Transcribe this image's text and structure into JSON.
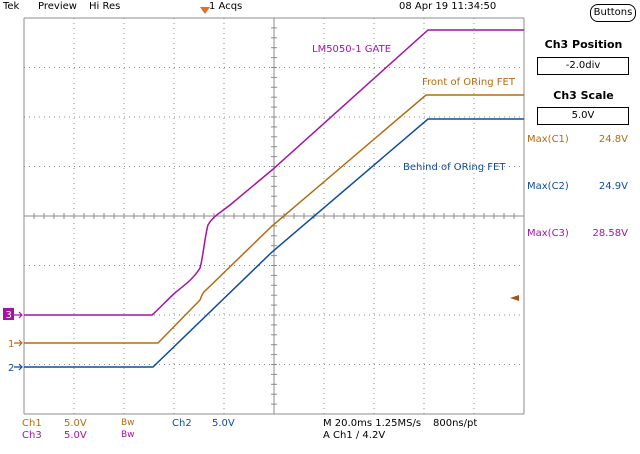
{
  "header": {
    "brand": "Tek",
    "mode": "Preview",
    "resolution": "Hi Res",
    "acqs": "1 Acqs",
    "datetime": "08 Apr 19 11:34:50",
    "buttons_label": "Buttons"
  },
  "colors": {
    "ch1": "#b36b12",
    "ch2": "#0f4c9a",
    "ch3": "#a314a3",
    "trigger": "#e07020",
    "grid": "#8c8c8c"
  },
  "traces": [
    {
      "name": "LM5050-1 GATE",
      "channel": "C3"
    },
    {
      "name": "Front of ORing FET",
      "channel": "C1"
    },
    {
      "name": "Behind of ORing FET",
      "channel": "C2"
    }
  ],
  "side_panel": {
    "position_title": "Ch3 Position",
    "position_value": "-2.0div",
    "scale_title": "Ch3 Scale",
    "scale_value": "5.0V",
    "measurements": [
      {
        "label": "Max(C1)",
        "value": "24.8V",
        "channel": "ch1"
      },
      {
        "label": "Max(C2)",
        "value": "24.9V",
        "channel": "ch2"
      },
      {
        "label": "Max(C3)",
        "value": "28.58V",
        "channel": "ch3"
      }
    ]
  },
  "channel_markers": {
    "ch3": "3",
    "ch1": "1",
    "ch2": "2"
  },
  "footer": {
    "ch1_label": "Ch1",
    "ch1_scale": "5.0V",
    "ch1_bw": "Bw",
    "ch2_label": "Ch2",
    "ch2_scale": "5.0V",
    "ch3_label": "Ch3",
    "ch3_scale": "5.0V",
    "ch3_bw": "Bw",
    "timebase": "M 20.0ms 1.25MS/s",
    "resolution": "800ns/pt",
    "trigger": "A  Ch1  ∕  4.2V"
  }
}
